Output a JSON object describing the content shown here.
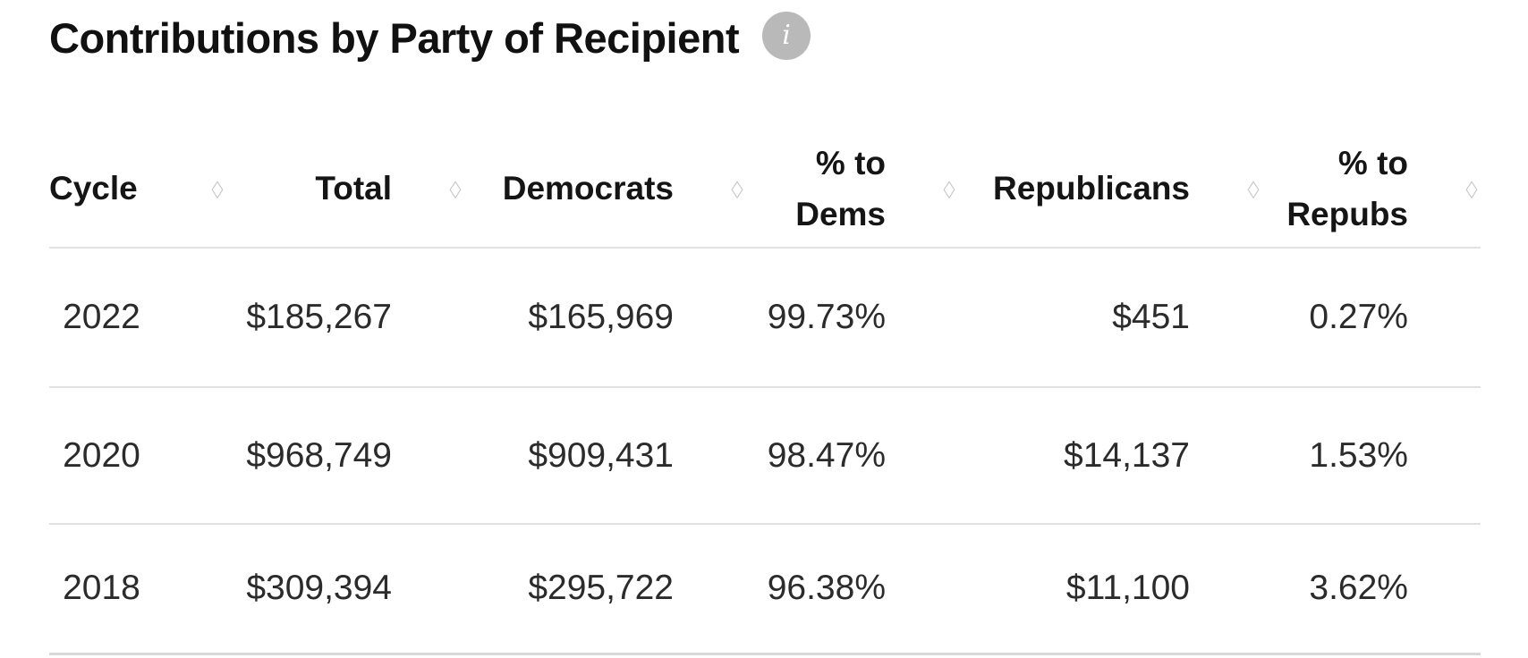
{
  "title": "Contributions by Party of Recipient",
  "info": {
    "glyph": "i"
  },
  "table": {
    "sort_glyph": "◇",
    "columns": [
      {
        "label": "Cycle"
      },
      {
        "label": "Total"
      },
      {
        "label": "Democrats"
      },
      {
        "label": "% to Dems"
      },
      {
        "label": "Republicans"
      },
      {
        "label": "% to Repubs"
      }
    ],
    "rows": [
      [
        "2022",
        "$185,267",
        "$165,969",
        "99.73%",
        "$451",
        "0.27%"
      ],
      [
        "2020",
        "$968,749",
        "$909,431",
        "98.47%",
        "$14,137",
        "1.53%"
      ],
      [
        "2018",
        "$309,394",
        "$295,722",
        "96.38%",
        "$11,100",
        "3.62%"
      ]
    ]
  },
  "colors": {
    "title_text": "#111111",
    "data_text": "#2b2b2b",
    "divider": "#e0e0e0",
    "info_icon_bg": "#b9b9b9",
    "sort_icon": "#c6c6c6"
  },
  "chart_data": {
    "type": "table",
    "title": "Contributions by Party of Recipient",
    "columns": [
      "Cycle",
      "Total",
      "Democrats",
      "% to Dems",
      "Republicans",
      "% to Repubs"
    ],
    "rows": [
      {
        "cycle": 2022,
        "total_usd": 185267,
        "democrats_usd": 165969,
        "pct_to_dems": 99.73,
        "republicans_usd": 451,
        "pct_to_repubs": 0.27
      },
      {
        "cycle": 2020,
        "total_usd": 968749,
        "democrats_usd": 909431,
        "pct_to_dems": 98.47,
        "republicans_usd": 14137,
        "pct_to_repubs": 1.53
      },
      {
        "cycle": 2018,
        "total_usd": 309394,
        "democrats_usd": 295722,
        "pct_to_dems": 96.38,
        "republicans_usd": 11100,
        "pct_to_repubs": 3.62
      }
    ]
  }
}
